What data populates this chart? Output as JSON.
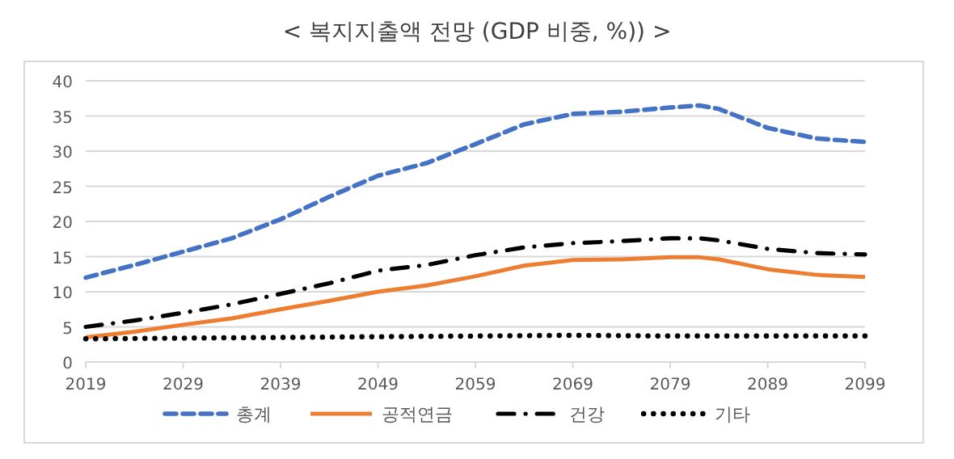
{
  "chart_data": {
    "type": "line",
    "title": "< 복지지출액 전망 (GDP 비중, %)) >",
    "xlim": [
      2019,
      2099
    ],
    "xticks": [
      2019,
      2029,
      2039,
      2049,
      2059,
      2069,
      2079,
      2089,
      2099
    ],
    "ylim": [
      0,
      40
    ],
    "yticks": [
      0,
      5,
      10,
      15,
      20,
      25,
      30,
      35,
      40
    ],
    "grid": "y",
    "legend": "bottom",
    "marker": "none",
    "series": [
      {
        "name": "총계",
        "color": "#4472c4",
        "line_style": "dashed",
        "x": [
          2019,
          2024,
          2029,
          2034,
          2039,
          2044,
          2049,
          2054,
          2059,
          2064,
          2069,
          2074,
          2079,
          2082,
          2084,
          2089,
          2094,
          2099
        ],
        "values": [
          12.0,
          13.8,
          15.7,
          17.6,
          20.3,
          23.5,
          26.5,
          28.3,
          31.0,
          33.8,
          35.3,
          35.6,
          36.2,
          36.5,
          36.0,
          33.3,
          31.8,
          31.3
        ]
      },
      {
        "name": "공적연금",
        "color": "#ed7d31",
        "line_style": "solid",
        "x": [
          2019,
          2024,
          2029,
          2034,
          2039,
          2044,
          2049,
          2054,
          2059,
          2064,
          2069,
          2074,
          2079,
          2082,
          2084,
          2089,
          2094,
          2099
        ],
        "values": [
          3.5,
          4.3,
          5.3,
          6.2,
          7.5,
          8.7,
          10.0,
          10.9,
          12.2,
          13.7,
          14.5,
          14.6,
          14.9,
          14.9,
          14.6,
          13.2,
          12.4,
          12.1
        ]
      },
      {
        "name": "건강",
        "color": "#000000",
        "line_style": "dashdot",
        "x": [
          2019,
          2024,
          2029,
          2034,
          2039,
          2044,
          2049,
          2054,
          2059,
          2064,
          2069,
          2074,
          2079,
          2082,
          2084,
          2089,
          2094,
          2099
        ],
        "values": [
          5.0,
          5.9,
          7.0,
          8.2,
          9.7,
          11.2,
          13.0,
          13.8,
          15.2,
          16.3,
          16.9,
          17.2,
          17.6,
          17.6,
          17.3,
          16.1,
          15.5,
          15.3
        ]
      },
      {
        "name": "기타",
        "color": "#000000",
        "line_style": "dotted",
        "x": [
          2019,
          2029,
          2039,
          2049,
          2059,
          2069,
          2079,
          2089,
          2099
        ],
        "values": [
          3.3,
          3.4,
          3.5,
          3.6,
          3.7,
          3.8,
          3.7,
          3.7,
          3.7
        ]
      }
    ]
  }
}
